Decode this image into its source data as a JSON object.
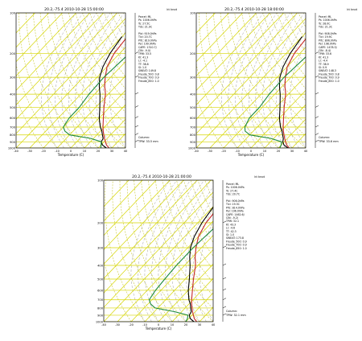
{
  "chart_data": [
    {
      "type": "line",
      "title": "20.2,-75.4 2010-10-28 15:00:00",
      "corner_label": "kt knot",
      "xlabel": "Temperature (C)",
      "ylabel": "",
      "xlim": [
        -40,
        40
      ],
      "ylim": [
        1000,
        100
      ],
      "x_ticks": [
        "-40",
        "-30",
        "-20",
        "-10",
        "0",
        "10",
        "20",
        "30",
        "40"
      ],
      "p_ticks": [
        "100",
        "200",
        "300",
        "400",
        "500",
        "600",
        "700",
        "800",
        "900",
        "1000"
      ],
      "info_lines": [
        "Parcel: ML",
        "Ps: 1006.0hPa",
        "Ts: 27.5C",
        "Tds: 21.9C",
        "",
        "Plcl: 919.0hPa",
        "Tlcl: 20.7C",
        "Plfc: 819.0hPa",
        "Pel: 199.9hPa",
        "CAPE: 1310.7J",
        "CIN: -9.0J",
        "TPW: 33.5",
        "KI: 41.3",
        "LI: -4.1",
        "TT: 38.8",
        "SI: 1.0",
        "SWEAT: 149.8",
        "Freude_500: 0.8",
        "Freude_700: 0.9",
        "Freude_850: 1.0"
      ],
      "column_label": "Column:",
      "tpw_label": "TPW: 33.5 mm",
      "series": [
        {
          "values": [
            [
              28,
              1000
            ],
            [
              24,
              950
            ],
            [
              21,
              900
            ],
            [
              18,
              850
            ],
            [
              15,
              800
            ],
            [
              12,
              750
            ],
            [
              9,
              700
            ],
            [
              3,
              600
            ],
            [
              -4,
              500
            ],
            [
              -12,
              400
            ],
            [
              -18,
              350
            ],
            [
              -24,
              300
            ],
            [
              -30,
              250
            ],
            [
              -34,
              200
            ],
            [
              -36,
              150
            ],
            [
              -38,
              100
            ]
          ]
        },
        {
          "values": [
            [
              26,
              1000
            ],
            [
              21,
              950
            ],
            [
              18,
              900
            ],
            [
              17,
              850
            ],
            [
              14,
              800
            ],
            [
              11,
              750
            ],
            [
              7,
              700
            ],
            [
              0,
              600
            ],
            [
              -7,
              500
            ],
            [
              -16,
              400
            ],
            [
              -22,
              350
            ],
            [
              -28,
              300
            ],
            [
              -33,
              250
            ],
            [
              -37,
              200
            ],
            [
              -40,
              150
            ]
          ]
        },
        {
          "values": [
            [
              22,
              1000
            ],
            [
              20,
              950
            ],
            [
              18,
              900
            ],
            [
              8,
              850
            ],
            [
              -10,
              800
            ],
            [
              -16,
              750
            ],
            [
              -20,
              700
            ],
            [
              -22,
              600
            ],
            [
              -22,
              500
            ],
            [
              -24,
              400
            ],
            [
              -25,
              300
            ],
            [
              -23,
              200
            ],
            [
              -22,
              150
            ],
            [
              -20,
              100
            ]
          ]
        }
      ]
    },
    {
      "type": "line",
      "title": "20.2,-75.4 2010-10-28 18:00:00",
      "corner_label": "kt knot",
      "xlabel": "Temperature (C)",
      "ylabel": "",
      "xlim": [
        -40,
        40
      ],
      "ylim": [
        1000,
        100
      ],
      "x_ticks": [
        "-40",
        "-30",
        "-20",
        "-10",
        "0",
        "10",
        "20",
        "30",
        "40"
      ],
      "p_ticks": [
        "100",
        "200",
        "300",
        "400",
        "500",
        "600",
        "700",
        "800",
        "900",
        "1000"
      ],
      "info_lines": [
        "Parcel: ML",
        "Ps: 1006.0hPa",
        "Ts: 28.0C",
        "Tds: 21.3C",
        "",
        "Plcl: 908.0hPa",
        "Tlcl: 19.9C",
        "Plfc: 806.0hPa",
        "Pel: 198.0hPa",
        "CAPE: 1478.3J",
        "CIN: -8.4J",
        "TPW: 33.6",
        "KI: 41.3",
        "LI: -4.4",
        "TT: 38.9",
        "SI: 0.9",
        "SWEAT: 148.3",
        "Freude_500: 0.8",
        "Freude_700: 0.9",
        "Freude_850: 1.0"
      ],
      "column_label": "Column:",
      "tpw_label": "TPW: 33.6 mm",
      "series": [
        {
          "values": [
            [
              28,
              1000
            ],
            [
              24,
              950
            ],
            [
              21,
              900
            ],
            [
              18,
              850
            ],
            [
              15,
              800
            ],
            [
              12,
              750
            ],
            [
              9,
              700
            ],
            [
              3,
              600
            ],
            [
              -4,
              500
            ],
            [
              -12,
              400
            ],
            [
              -18,
              350
            ],
            [
              -24,
              300
            ],
            [
              -30,
              250
            ],
            [
              -34,
              200
            ],
            [
              -36,
              150
            ],
            [
              -38,
              100
            ]
          ]
        },
        {
          "values": [
            [
              27,
              1000
            ],
            [
              22,
              950
            ],
            [
              19,
              900
            ],
            [
              17,
              850
            ],
            [
              14,
              800
            ],
            [
              11,
              750
            ],
            [
              7,
              700
            ],
            [
              0,
              600
            ],
            [
              -7,
              500
            ],
            [
              -16,
              400
            ],
            [
              -22,
              350
            ],
            [
              -28,
              300
            ],
            [
              -33,
              250
            ],
            [
              -37,
              200
            ],
            [
              -40,
              150
            ]
          ]
        },
        {
          "values": [
            [
              21,
              1000
            ],
            [
              20,
              950
            ],
            [
              18,
              900
            ],
            [
              8,
              850
            ],
            [
              -10,
              800
            ],
            [
              -16,
              750
            ],
            [
              -19,
              700
            ],
            [
              -22,
              600
            ],
            [
              -22,
              500
            ],
            [
              -24,
              400
            ],
            [
              -25,
              300
            ],
            [
              -23,
              200
            ],
            [
              -22,
              150
            ],
            [
              -20,
              100
            ]
          ]
        }
      ]
    },
    {
      "type": "line",
      "title": "20.2,-75.4 2010-10-28 21:00:00",
      "corner_label": "kt knot",
      "xlabel": "Temperature (C)",
      "ylabel": "",
      "xlim": [
        -40,
        40
      ],
      "ylim": [
        1000,
        100
      ],
      "x_ticks": [
        "-40",
        "-30",
        "-20",
        "-10",
        "0",
        "10",
        "20",
        "30",
        "40"
      ],
      "p_ticks": [
        "100",
        "200",
        "300",
        "400",
        "500",
        "600",
        "700",
        "800",
        "900",
        "1000"
      ],
      "info_lines": [
        "Parcel: ML",
        "Ps: 1006.0hPa",
        "Ts: 27.4C",
        "Tds: 20.7C",
        "",
        "Plcl: 906.0hPa",
        "Tlcl: 19.3C",
        "Plfc: 814.0hPa",
        "Pel: 196.0hPa",
        "CAPE: 1462.6J",
        "CIN: -9.2J",
        "TPW: 32.1",
        "KI: 43.3",
        "LI: -4.6",
        "TT: 42.3",
        "SI: 1.0",
        "SWEAT: 173.8",
        "Freude_500: 0.9",
        "Freude_700: 0.9",
        "Freude_850: 1.0"
      ],
      "column_label": "Column:",
      "tpw_label": "TPW: 32.1 mm",
      "series": [
        {
          "values": [
            [
              28,
              1000
            ],
            [
              24,
              950
            ],
            [
              21,
              900
            ],
            [
              18,
              850
            ],
            [
              15,
              800
            ],
            [
              12,
              750
            ],
            [
              9,
              700
            ],
            [
              3,
              600
            ],
            [
              -4,
              500
            ],
            [
              -12,
              400
            ],
            [
              -18,
              350
            ],
            [
              -24,
              300
            ],
            [
              -30,
              250
            ],
            [
              -34,
              200
            ],
            [
              -36,
              150
            ],
            [
              -38,
              100
            ]
          ]
        },
        {
          "values": [
            [
              26,
              1000
            ],
            [
              21,
              950
            ],
            [
              18,
              900
            ],
            [
              17,
              850
            ],
            [
              14,
              800
            ],
            [
              11,
              750
            ],
            [
              7,
              700
            ],
            [
              0,
              600
            ],
            [
              -7,
              500
            ],
            [
              -16,
              400
            ],
            [
              -22,
              350
            ],
            [
              -28,
              300
            ],
            [
              -33,
              250
            ],
            [
              -37,
              200
            ],
            [
              -40,
              150
            ]
          ]
        },
        {
          "values": [
            [
              20,
              1000
            ],
            [
              19,
              950
            ],
            [
              17,
              900
            ],
            [
              5,
              850
            ],
            [
              -12,
              800
            ],
            [
              -18,
              750
            ],
            [
              -22,
              700
            ],
            [
              -24,
              600
            ],
            [
              -25,
              500
            ],
            [
              -26,
              400
            ],
            [
              -26,
              300
            ],
            [
              -24,
              200
            ],
            [
              -22,
              150
            ],
            [
              -20,
              100
            ]
          ]
        }
      ]
    }
  ]
}
